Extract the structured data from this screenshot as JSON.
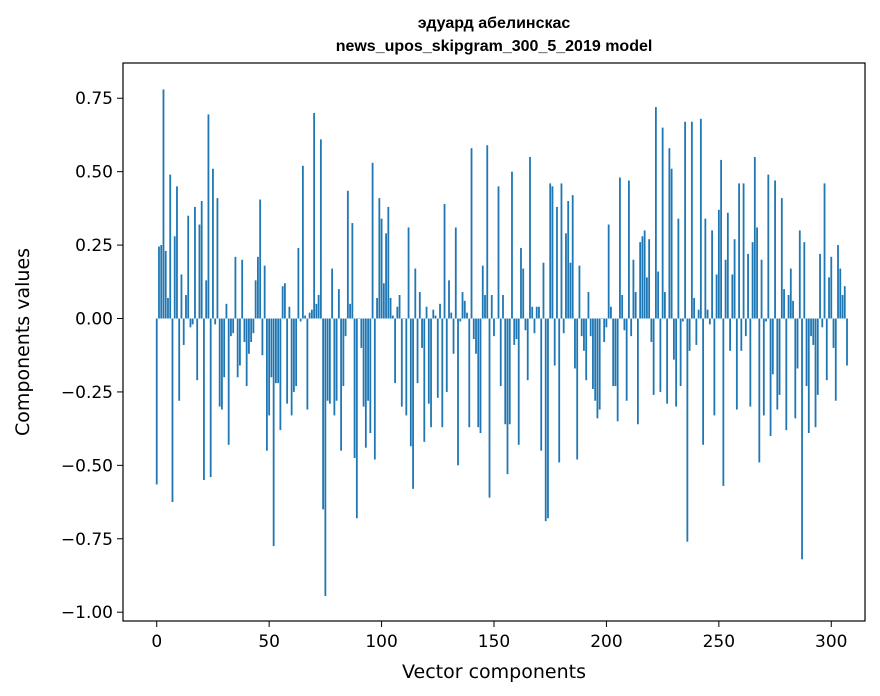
{
  "chart_data": {
    "type": "bar",
    "title": "эдуард абелинскас",
    "subtitle": "news_upos_skipgram_300_5_2019 model",
    "xlabel": "Vector components",
    "ylabel": "Components values",
    "xlim": [
      -15,
      315
    ],
    "ylim": [
      -1.03,
      0.87
    ],
    "xticks": [
      0,
      50,
      100,
      150,
      200,
      250,
      300
    ],
    "xtick_labels": [
      "0",
      "50",
      "100",
      "150",
      "200",
      "250",
      "300"
    ],
    "yticks": [
      0.75,
      0.5,
      0.25,
      0.0,
      -0.25,
      -0.5,
      -0.75,
      -1.0
    ],
    "ytick_labels": [
      "0.75",
      "0.50",
      "0.25",
      "0.00",
      "−0.25",
      "−0.50",
      "−0.75",
      "−1.00"
    ],
    "bar_color": "#1f77b4",
    "values": [
      -0.565,
      0.245,
      0.25,
      0.78,
      0.23,
      0.07,
      0.49,
      -0.625,
      0.28,
      0.45,
      -0.28,
      0.15,
      -0.09,
      0.08,
      0.35,
      -0.03,
      -0.02,
      0.38,
      -0.21,
      0.32,
      0.4,
      -0.55,
      0.13,
      0.695,
      -0.54,
      0.51,
      -0.02,
      0.41,
      -0.3,
      -0.31,
      -0.2,
      0.05,
      -0.43,
      -0.06,
      -0.05,
      0.21,
      -0.2,
      -0.16,
      0.2,
      -0.08,
      -0.23,
      -0.12,
      -0.08,
      -0.05,
      0.13,
      0.21,
      0.405,
      -0.125,
      0.18,
      -0.45,
      -0.33,
      -0.2,
      -0.775,
      -0.22,
      -0.22,
      -0.38,
      0.11,
      0.12,
      -0.29,
      0.04,
      -0.33,
      -0.25,
      -0.23,
      0.24,
      -0.01,
      0.52,
      0.01,
      -0.31,
      0.02,
      0.03,
      0.7,
      0.05,
      0.08,
      0.61,
      -0.65,
      -0.945,
      -0.28,
      -0.29,
      0.17,
      -0.33,
      -0.28,
      0.1,
      -0.45,
      -0.23,
      -0.06,
      0.435,
      0.05,
      0.325,
      -0.475,
      -0.68,
      0.0,
      -0.1,
      -0.3,
      -0.44,
      -0.28,
      -0.39,
      0.53,
      -0.48,
      0.07,
      0.41,
      0.34,
      0.12,
      0.29,
      0.38,
      0.07,
      0.01,
      -0.22,
      0.04,
      0.08,
      -0.3,
      0.0,
      -0.33,
      0.31,
      -0.435,
      -0.58,
      0.17,
      -0.22,
      0.09,
      -0.1,
      -0.42,
      0.04,
      -0.29,
      -0.37,
      0.03,
      0.01,
      -0.27,
      0.05,
      -0.37,
      0.39,
      -0.25,
      0.13,
      0.02,
      -0.12,
      0.31,
      -0.5,
      -0.01,
      0.09,
      0.06,
      0.02,
      -0.37,
      0.58,
      -0.07,
      -0.12,
      -0.37,
      -0.39,
      0.18,
      0.08,
      0.59,
      -0.61,
      0.08,
      -0.06,
      0.0,
      0.45,
      -0.23,
      0.08,
      -0.36,
      -0.53,
      -0.36,
      0.5,
      -0.09,
      -0.07,
      -0.43,
      0.24,
      0.17,
      -0.04,
      -0.21,
      0.55,
      0.04,
      -0.05,
      0.04,
      0.04,
      -0.45,
      0.19,
      -0.69,
      -0.68,
      0.46,
      0.45,
      -0.16,
      0.38,
      -0.49,
      0.46,
      -0.05,
      0.29,
      0.4,
      0.19,
      0.42,
      -0.17,
      -0.48,
      0.18,
      -0.06,
      -0.11,
      -0.21,
      0.09,
      -0.06,
      -0.24,
      -0.28,
      -0.34,
      -0.31,
      0.0,
      -0.08,
      -0.03,
      0.32,
      0.04,
      -0.23,
      -0.23,
      -0.35,
      0.48,
      0.08,
      -0.04,
      -0.28,
      0.47,
      -0.06,
      0.2,
      0.09,
      -0.36,
      0.26,
      0.28,
      0.3,
      0.14,
      0.27,
      -0.08,
      -0.26,
      0.72,
      0.16,
      -0.25,
      0.65,
      0.09,
      -0.29,
      0.58,
      0.51,
      -0.14,
      -0.3,
      0.34,
      -0.23,
      -0.01,
      0.67,
      -0.76,
      -0.11,
      0.67,
      0.07,
      -0.09,
      0.03,
      0.68,
      -0.43,
      0.34,
      0.03,
      -0.02,
      0.3,
      -0.33,
      0.15,
      0.37,
      0.54,
      -0.57,
      0.2,
      0.36,
      -0.11,
      0.15,
      0.27,
      -0.31,
      0.46,
      -0.11,
      0.46,
      -0.06,
      0.22,
      -0.3,
      0.26,
      0.55,
      0.31,
      -0.49,
      0.2,
      -0.33,
      -0.01,
      0.49,
      -0.4,
      -0.19,
      0.47,
      -0.31,
      -0.26,
      0.41,
      0.1,
      -0.38,
      0.08,
      0.17,
      0.06,
      -0.34,
      -0.17,
      0.3,
      -0.82,
      0.26,
      -0.23,
      -0.39,
      -0.06,
      -0.09,
      -0.37,
      -0.26,
      0.22,
      -0.03,
      0.46,
      -0.21,
      0.14,
      0.21,
      -0.1,
      -0.28,
      0.25,
      0.17,
      0.08,
      0.11,
      -0.16
    ]
  }
}
